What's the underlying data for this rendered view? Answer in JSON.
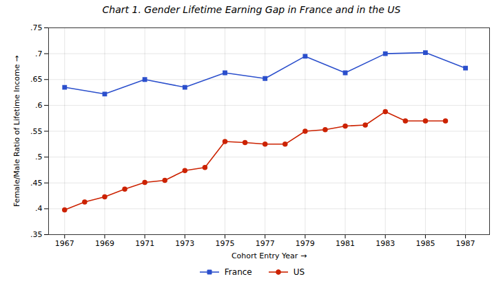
{
  "chart_data": {
    "type": "line",
    "title": "Chart 1.  Gender Lifetime Earning Gap in France and in the US",
    "xlabel": "Cohort Entry Year",
    "ylabel": "Female/Male Ratio of Lifetime Income",
    "series": [
      {
        "name": "France",
        "color": "#2b4fcc",
        "marker": "square",
        "x": [
          1967,
          1969,
          1971,
          1973,
          1975,
          1977,
          1979,
          1981,
          1983,
          1985,
          1987
        ],
        "values": [
          0.635,
          0.622,
          0.65,
          0.635,
          0.663,
          0.652,
          0.695,
          0.663,
          0.7,
          0.702,
          0.672
        ]
      },
      {
        "name": "US",
        "color": "#cc2200",
        "marker": "circle",
        "x": [
          1967,
          1968,
          1969,
          1970,
          1971,
          1972,
          1973,
          1974,
          1975,
          1976,
          1977,
          1978,
          1979,
          1980,
          1981,
          1982,
          1983,
          1984,
          1985,
          1986
        ],
        "values": [
          0.398,
          0.413,
          0.423,
          0.438,
          0.451,
          0.455,
          0.474,
          0.48,
          0.53,
          0.528,
          0.525,
          0.525,
          0.55,
          0.553,
          0.56,
          0.562,
          0.588,
          0.57,
          0.57,
          0.57
        ]
      }
    ],
    "xlim": [
      1966.2,
      1988.2
    ],
    "xticks": [
      1967,
      1969,
      1971,
      1973,
      1975,
      1977,
      1979,
      1981,
      1983,
      1985,
      1987
    ],
    "ylim": [
      0.35,
      0.75
    ],
    "yticks": [
      {
        "value": 0.35,
        "label": ".35"
      },
      {
        "value": 0.4,
        "label": ".4"
      },
      {
        "value": 0.45,
        "label": ".45"
      },
      {
        "value": 0.5,
        "label": ".5"
      },
      {
        "value": 0.55,
        "label": ".55"
      },
      {
        "value": 0.6,
        "label": ".6"
      },
      {
        "value": 0.65,
        "label": ".65"
      },
      {
        "value": 0.7,
        "label": ".7"
      },
      {
        "value": 0.75,
        "label": ".75"
      }
    ],
    "grid": true,
    "legend": "bottom"
  }
}
